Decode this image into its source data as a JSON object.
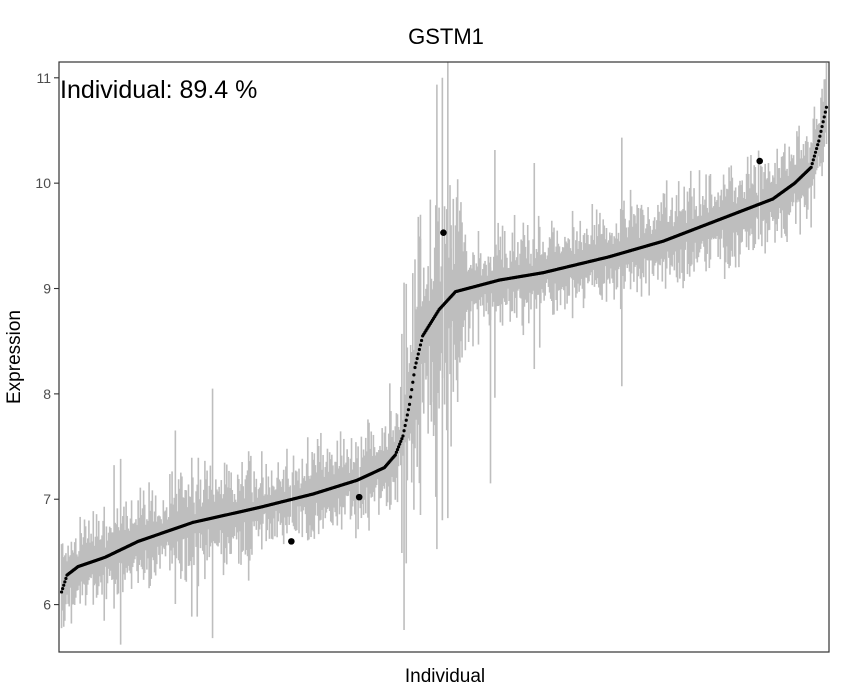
{
  "chart_data": {
    "type": "scatter",
    "title": "GSTM1",
    "xlabel": "Individual",
    "ylabel": "Expression",
    "annotation": "Individual: 89.4 %",
    "ylim": [
      5.55,
      11.15
    ],
    "yticks": [
      6,
      7,
      8,
      9,
      10,
      11
    ],
    "x_ticks_shown": false,
    "grid": false,
    "n_individuals": 700,
    "sorted_means_profile": [
      {
        "rank": 0,
        "y": 6.12
      },
      {
        "rank": 5,
        "y": 6.28
      },
      {
        "rank": 15,
        "y": 6.36
      },
      {
        "rank": 40,
        "y": 6.45
      },
      {
        "rank": 70,
        "y": 6.6
      },
      {
        "rank": 120,
        "y": 6.78
      },
      {
        "rank": 180,
        "y": 6.92
      },
      {
        "rank": 230,
        "y": 7.05
      },
      {
        "rank": 270,
        "y": 7.18
      },
      {
        "rank": 295,
        "y": 7.3
      },
      {
        "rank": 305,
        "y": 7.42
      },
      {
        "rank": 312,
        "y": 7.6
      },
      {
        "rank": 318,
        "y": 7.9
      },
      {
        "rank": 323,
        "y": 8.25
      },
      {
        "rank": 330,
        "y": 8.55
      },
      {
        "rank": 345,
        "y": 8.8
      },
      {
        "rank": 360,
        "y": 8.97
      },
      {
        "rank": 400,
        "y": 9.08
      },
      {
        "rank": 440,
        "y": 9.15
      },
      {
        "rank": 500,
        "y": 9.3
      },
      {
        "rank": 550,
        "y": 9.45
      },
      {
        "rank": 600,
        "y": 9.65
      },
      {
        "rank": 650,
        "y": 9.85
      },
      {
        "rank": 670,
        "y": 10.0
      },
      {
        "rank": 685,
        "y": 10.15
      },
      {
        "rank": 692,
        "y": 10.4
      },
      {
        "rank": 699,
        "y": 10.72
      }
    ],
    "isolated_points": [
      {
        "rank": 210,
        "y": 6.6
      },
      {
        "rank": 272,
        "y": 7.02
      },
      {
        "rank": 349,
        "y": 9.53
      },
      {
        "rank": 638,
        "y": 10.21
      }
    ],
    "colors": {
      "points": "#000000",
      "ranges": "#bebebe",
      "panel_border": "#333333",
      "tick_labels": "#4d4d4d"
    }
  }
}
